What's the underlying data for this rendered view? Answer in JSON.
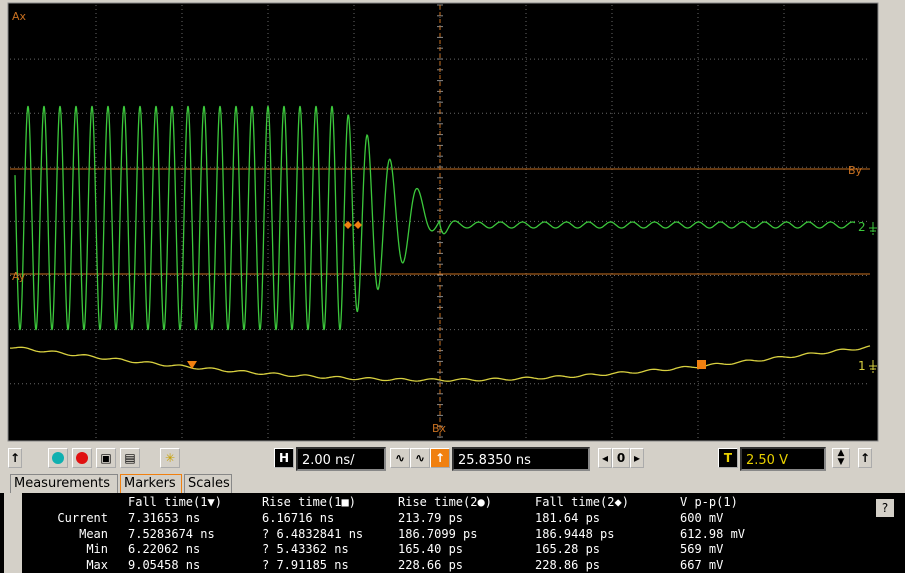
{
  "screen": {
    "markers": {
      "ax": "Ax",
      "by": "By",
      "ay": "Ay",
      "bx": "Bx"
    },
    "channels": [
      "2",
      "1"
    ]
  },
  "toolbar": {
    "h": "H",
    "timebase": "2.00 ns/",
    "position": "25.8350 ns",
    "zero": "0",
    "t": "T",
    "trigger_level": "2.50 V"
  },
  "tabs": [
    "Measurements",
    "Markers",
    "Scales"
  ],
  "help": "?",
  "measurements": {
    "columns": [
      "Fall time(1▼)",
      "Rise time(1■)",
      "Rise time(2●)",
      "Fall time(2◆)",
      "V p-p(1)"
    ],
    "rows": [
      {
        "label": "Current",
        "cells": [
          "7.31653 ns",
          "6.16716 ns",
          "213.79 ps",
          "181.64 ps",
          "600 mV"
        ]
      },
      {
        "label": "Mean",
        "cells": [
          "7.5283674 ns",
          "? 6.4832841 ns",
          "186.7099 ps",
          "186.9448 ps",
          "612.98 mV"
        ]
      },
      {
        "label": "Min",
        "cells": [
          "6.22062 ns",
          "? 5.43362 ns",
          "165.40 ps",
          "165.28 ps",
          "569 mV"
        ]
      },
      {
        "label": "Max",
        "cells": [
          "9.05458 ns",
          "? 7.91185 ns",
          "228.66 ps",
          "228.86 ps",
          "667 mV"
        ]
      }
    ]
  }
}
